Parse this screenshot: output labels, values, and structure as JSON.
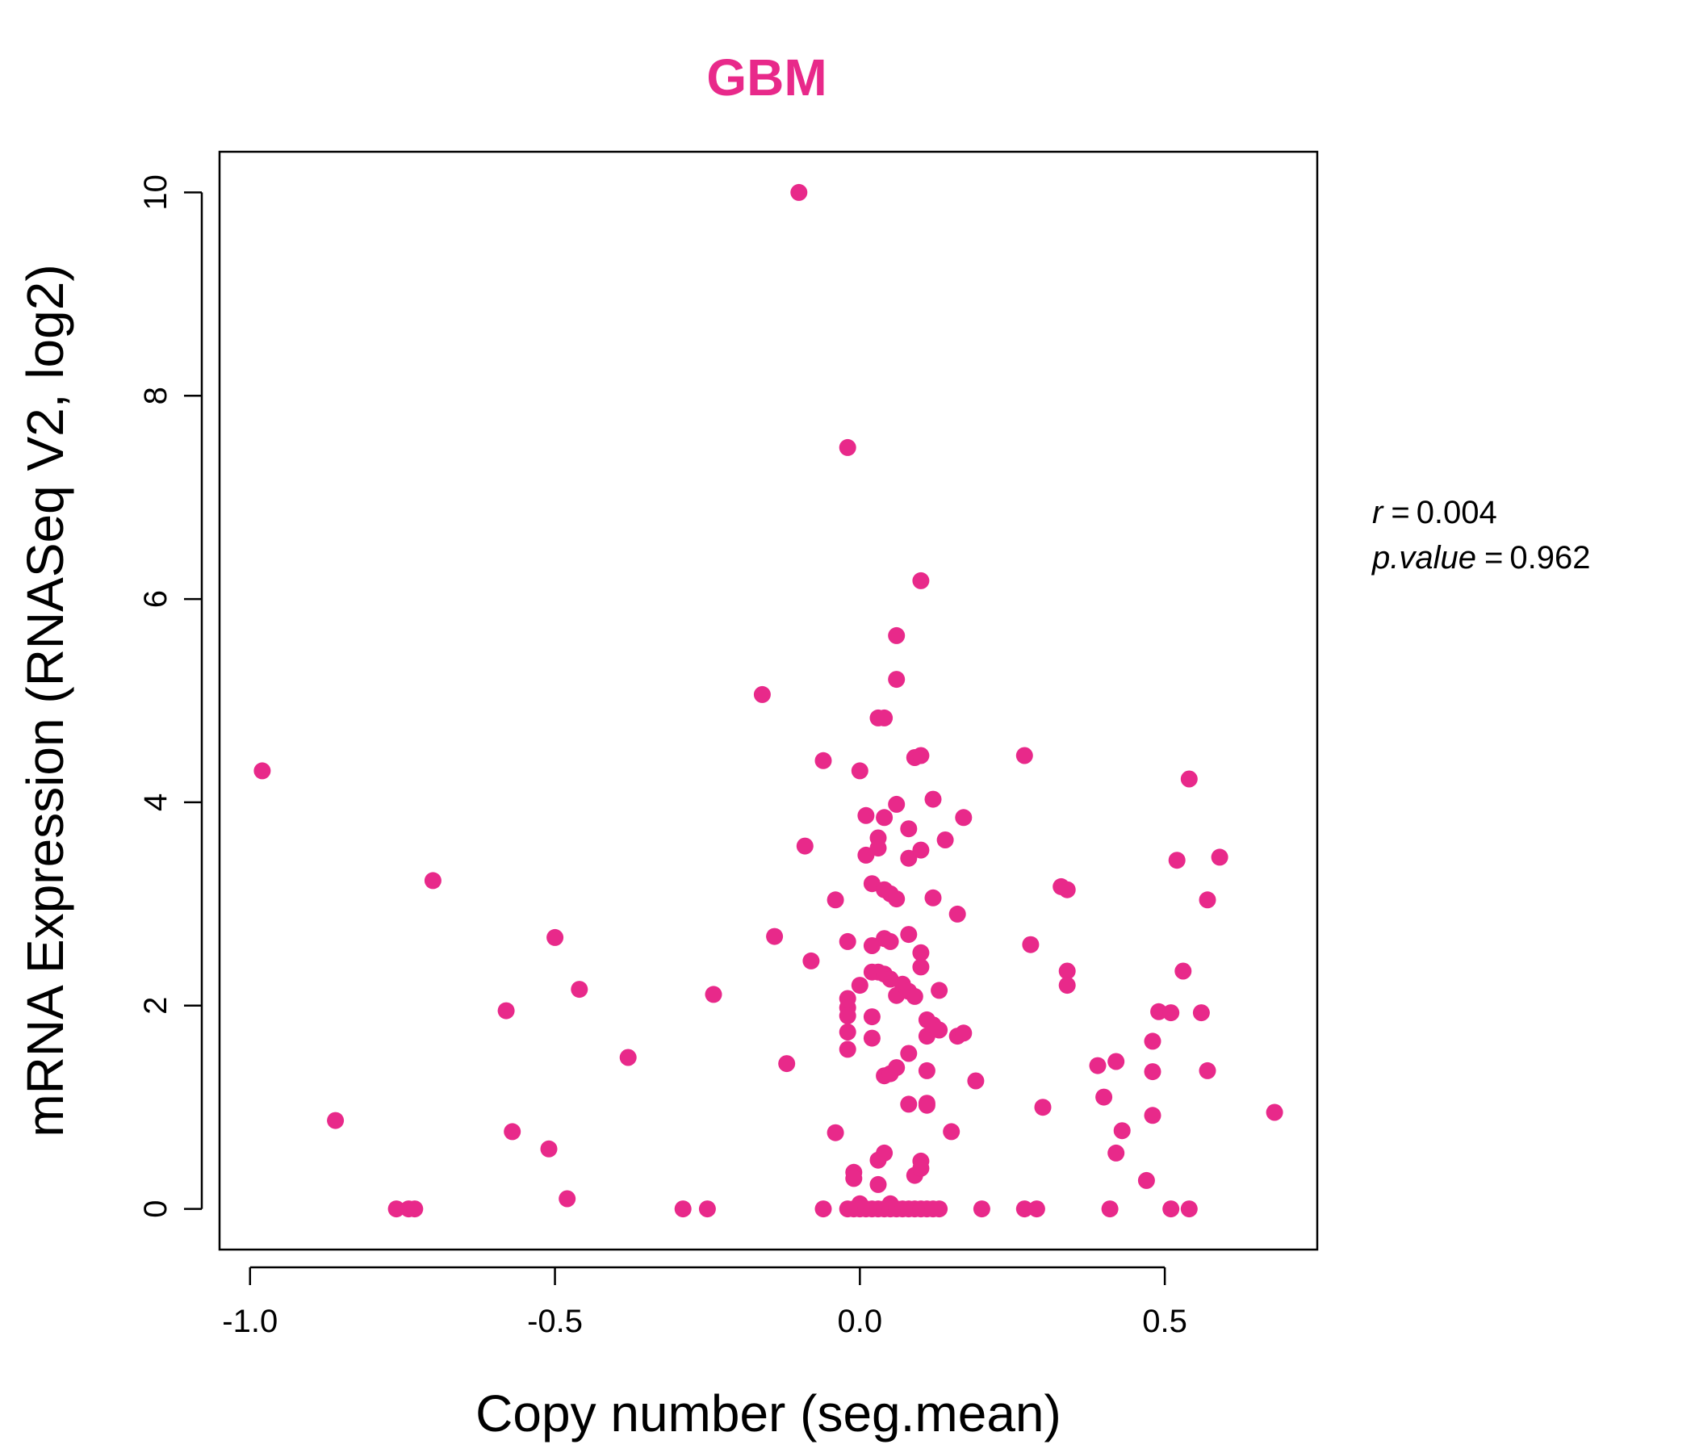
{
  "chart_data": {
    "type": "scatter",
    "title": "GBM",
    "xlabel": "Copy number (seg.mean)",
    "ylabel": "mRNA Expression (RNASeq V2, log2)",
    "xlim": [
      -1.05,
      0.75
    ],
    "ylim": [
      -0.4,
      10.4
    ],
    "x_ticks": [
      -1.0,
      -0.5,
      0.0,
      0.5
    ],
    "x_tick_labels": [
      "-1.0",
      "-0.5",
      "0.0",
      "0.5"
    ],
    "y_ticks": [
      0,
      2,
      4,
      6,
      8,
      10
    ],
    "y_tick_labels": [
      "0",
      "2",
      "4",
      "6",
      "8",
      "10"
    ],
    "grid": false,
    "point_color": "#E8298A",
    "stats": {
      "r_label": "r",
      "r_value": "0.004",
      "p_label": "p.value",
      "p_value": "0.962"
    },
    "points": [
      [
        -0.98,
        4.31
      ],
      [
        -0.86,
        0.87
      ],
      [
        -0.76,
        0.0
      ],
      [
        -0.74,
        0.0
      ],
      [
        -0.73,
        0.0
      ],
      [
        -0.7,
        3.23
      ],
      [
        -0.58,
        1.95
      ],
      [
        -0.57,
        0.76
      ],
      [
        -0.51,
        0.59
      ],
      [
        -0.5,
        2.67
      ],
      [
        -0.48,
        0.1
      ],
      [
        -0.46,
        2.16
      ],
      [
        -0.38,
        1.49
      ],
      [
        -0.29,
        0.0
      ],
      [
        -0.25,
        0.0
      ],
      [
        -0.24,
        2.11
      ],
      [
        -0.16,
        5.06
      ],
      [
        -0.14,
        2.68
      ],
      [
        -0.12,
        1.43
      ],
      [
        -0.1,
        10.0
      ],
      [
        -0.09,
        3.57
      ],
      [
        -0.08,
        2.44
      ],
      [
        -0.06,
        4.41
      ],
      [
        -0.06,
        0.0
      ],
      [
        -0.04,
        3.04
      ],
      [
        -0.04,
        0.75
      ],
      [
        -0.02,
        7.49
      ],
      [
        -0.02,
        2.63
      ],
      [
        -0.02,
        2.07
      ],
      [
        -0.02,
        1.98
      ],
      [
        -0.02,
        1.9
      ],
      [
        -0.02,
        1.74
      ],
      [
        -0.02,
        1.57
      ],
      [
        -0.02,
        0.0
      ],
      [
        -0.01,
        0.36
      ],
      [
        -0.01,
        0.3
      ],
      [
        -0.01,
        0.0
      ],
      [
        0.0,
        4.31
      ],
      [
        0.0,
        2.2
      ],
      [
        0.0,
        0.05
      ],
      [
        0.0,
        0.0
      ],
      [
        0.01,
        3.87
      ],
      [
        0.01,
        3.48
      ],
      [
        0.01,
        0.0
      ],
      [
        0.02,
        3.2
      ],
      [
        0.02,
        2.59
      ],
      [
        0.02,
        2.33
      ],
      [
        0.02,
        1.89
      ],
      [
        0.02,
        1.68
      ],
      [
        0.02,
        0.0
      ],
      [
        0.03,
        4.83
      ],
      [
        0.03,
        3.65
      ],
      [
        0.03,
        3.55
      ],
      [
        0.03,
        2.33
      ],
      [
        0.03,
        0.48
      ],
      [
        0.03,
        0.24
      ],
      [
        0.03,
        0.0
      ],
      [
        0.04,
        4.83
      ],
      [
        0.04,
        3.85
      ],
      [
        0.04,
        3.14
      ],
      [
        0.04,
        2.66
      ],
      [
        0.04,
        2.31
      ],
      [
        0.04,
        1.31
      ],
      [
        0.04,
        0.55
      ],
      [
        0.04,
        0.0
      ],
      [
        0.05,
        3.1
      ],
      [
        0.05,
        2.63
      ],
      [
        0.05,
        2.26
      ],
      [
        0.05,
        1.33
      ],
      [
        0.05,
        0.05
      ],
      [
        0.05,
        0.0
      ],
      [
        0.06,
        5.64
      ],
      [
        0.06,
        5.21
      ],
      [
        0.06,
        3.98
      ],
      [
        0.06,
        3.05
      ],
      [
        0.06,
        2.1
      ],
      [
        0.06,
        1.39
      ],
      [
        0.06,
        0.0
      ],
      [
        0.07,
        2.21
      ],
      [
        0.07,
        0.0
      ],
      [
        0.08,
        3.74
      ],
      [
        0.08,
        3.45
      ],
      [
        0.08,
        2.7
      ],
      [
        0.08,
        2.14
      ],
      [
        0.08,
        1.53
      ],
      [
        0.08,
        1.03
      ],
      [
        0.08,
        0.0
      ],
      [
        0.09,
        4.44
      ],
      [
        0.09,
        2.09
      ],
      [
        0.09,
        0.33
      ],
      [
        0.09,
        0.0
      ],
      [
        0.1,
        4.46
      ],
      [
        0.1,
        3.53
      ],
      [
        0.1,
        2.52
      ],
      [
        0.1,
        2.38
      ],
      [
        0.1,
        0.47
      ],
      [
        0.1,
        0.4
      ],
      [
        0.1,
        0.0
      ],
      [
        0.11,
        1.86
      ],
      [
        0.11,
        1.7
      ],
      [
        0.11,
        1.36
      ],
      [
        0.11,
        1.04
      ],
      [
        0.11,
        0.0
      ],
      [
        0.1,
        6.18
      ],
      [
        0.11,
        1.02
      ],
      [
        0.12,
        4.03
      ],
      [
        0.12,
        3.06
      ],
      [
        0.12,
        1.81
      ],
      [
        0.12,
        0.0
      ],
      [
        0.13,
        2.15
      ],
      [
        0.13,
        1.76
      ],
      [
        0.13,
        0.0
      ],
      [
        0.14,
        3.63
      ],
      [
        0.15,
        0.76
      ],
      [
        0.16,
        2.9
      ],
      [
        0.16,
        1.7
      ],
      [
        0.17,
        3.85
      ],
      [
        0.17,
        1.73
      ],
      [
        0.19,
        1.26
      ],
      [
        0.2,
        0.0
      ],
      [
        0.27,
        4.46
      ],
      [
        0.27,
        0.0
      ],
      [
        0.28,
        2.6
      ],
      [
        0.29,
        0.0
      ],
      [
        0.3,
        1.0
      ],
      [
        0.33,
        3.17
      ],
      [
        0.34,
        2.34
      ],
      [
        0.34,
        2.2
      ],
      [
        0.34,
        3.14
      ],
      [
        0.39,
        1.41
      ],
      [
        0.4,
        1.1
      ],
      [
        0.41,
        0.0
      ],
      [
        0.42,
        1.45
      ],
      [
        0.42,
        0.55
      ],
      [
        0.43,
        0.77
      ],
      [
        0.47,
        0.28
      ],
      [
        0.48,
        1.65
      ],
      [
        0.48,
        1.35
      ],
      [
        0.48,
        0.92
      ],
      [
        0.49,
        1.94
      ],
      [
        0.51,
        1.93
      ],
      [
        0.51,
        0.0
      ],
      [
        0.52,
        3.43
      ],
      [
        0.53,
        2.34
      ],
      [
        0.54,
        4.23
      ],
      [
        0.54,
        0.0
      ],
      [
        0.56,
        1.93
      ],
      [
        0.57,
        1.36
      ],
      [
        0.57,
        3.04
      ],
      [
        0.59,
        3.46
      ],
      [
        0.68,
        0.95
      ]
    ]
  }
}
